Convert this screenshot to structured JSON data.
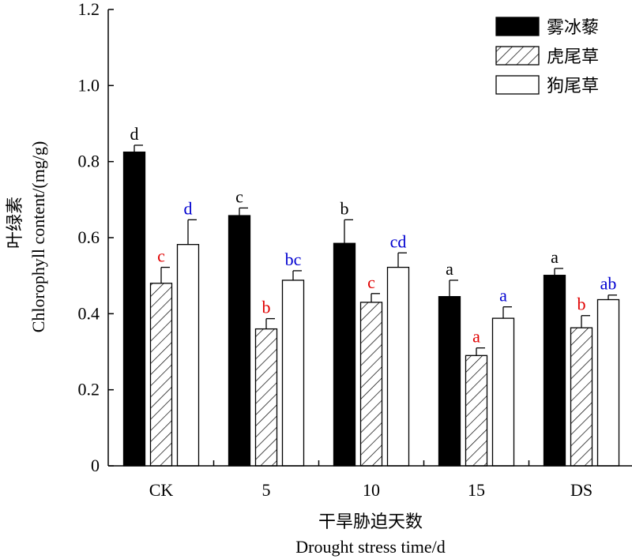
{
  "chart_data": {
    "type": "bar",
    "categories": [
      "CK",
      "5",
      "10",
      "15",
      "DS"
    ],
    "series": [
      {
        "name": "雾冰藜",
        "values": [
          0.825,
          0.658,
          0.585,
          0.445,
          0.501
        ],
        "errors": [
          0.018,
          0.02,
          0.062,
          0.043,
          0.018
        ],
        "letters": [
          "d",
          "c",
          "b",
          "a",
          "a"
        ],
        "letter_color": "#000000",
        "fill": "solid"
      },
      {
        "name": "虎尾草",
        "values": [
          0.48,
          0.36,
          0.43,
          0.29,
          0.363
        ],
        "errors": [
          0.042,
          0.027,
          0.023,
          0.02,
          0.032
        ],
        "letters": [
          "c",
          "b",
          "c",
          "a",
          "b"
        ],
        "letter_color": "#e00000",
        "fill": "hatch"
      },
      {
        "name": "狗尾草",
        "values": [
          0.582,
          0.488,
          0.522,
          0.388,
          0.437
        ],
        "errors": [
          0.065,
          0.025,
          0.038,
          0.03,
          0.012
        ],
        "letters": [
          "d",
          "bc",
          "cd",
          "a",
          "ab"
        ],
        "letter_color": "#0000d0",
        "fill": "empty"
      }
    ],
    "ylim": [
      0,
      1.2
    ],
    "yticks": [
      "0",
      "0.2",
      "0.4",
      "0.6",
      "0.8",
      "1.0",
      "1.2"
    ],
    "ylabel_cn": "叶绿素",
    "ylabel_en": "Chlorophyll content/(mg/g)",
    "xlabel_cn": "干旱胁迫天数",
    "xlabel_en": "Drought stress time/d",
    "legend_position": "top-right",
    "grid": false
  }
}
